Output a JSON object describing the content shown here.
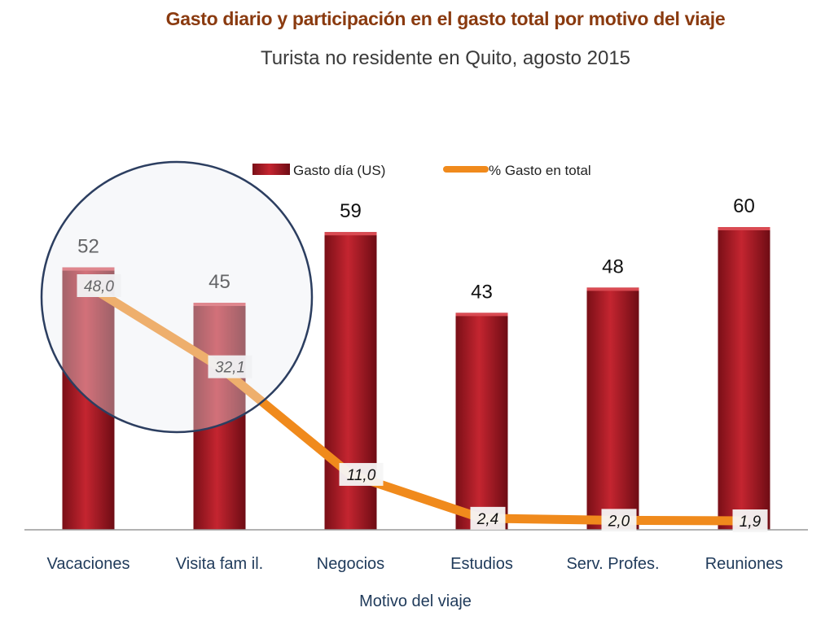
{
  "chart_data": {
    "type": "bar",
    "title": "Gasto diario y participación en el gasto total por motivo del viaje",
    "subtitle": "Turista no residente en Quito, agosto 2015",
    "xlabel": "Motivo del viaje",
    "categories": [
      "Vacaciones",
      "Visita fam il.",
      "Negocios",
      "Estudios",
      "Serv. Profes.",
      "Reuniones"
    ],
    "series": [
      {
        "name": "Gasto día (US)",
        "kind": "bar",
        "values": [
          52,
          45,
          59,
          43,
          48,
          60
        ],
        "labels": [
          "52",
          "45",
          "59",
          "43",
          "48",
          "60"
        ],
        "color": "#b01c26"
      },
      {
        "name": "% Gasto en total",
        "kind": "line",
        "values": [
          48.0,
          32.1,
          11.0,
          2.4,
          2.0,
          1.9
        ],
        "labels": [
          "48,0",
          "32,1",
          "11,0",
          "2,4",
          "2,0",
          "1,9"
        ],
        "color": "#f08a1c"
      }
    ],
    "legend_position": "top",
    "grid": false,
    "highlight": "circle around Vacaciones and Visita fam il.",
    "colors": {
      "title": "#8a3a0f",
      "axis_text": "#1f3a5a",
      "circle_stroke": "#2c3e60"
    }
  }
}
